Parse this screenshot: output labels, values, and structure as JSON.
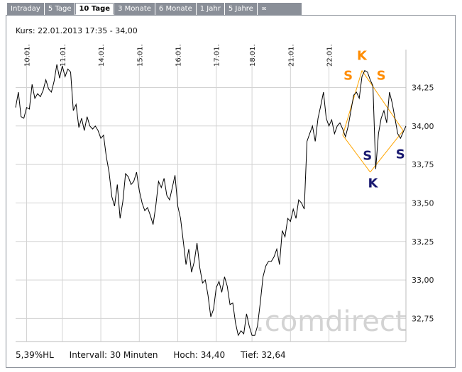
{
  "tabs": [
    "Intraday",
    "5 Tage",
    "10 Tage",
    "3 Monate",
    "6 Monate",
    "1 Jahr",
    "5 Jahre",
    "∞"
  ],
  "active_tab": "10 Tage",
  "kurs_label": "Kurs: 22.01.2013 17:35 - 34,00",
  "footer": {
    "performance": "5,39%HL",
    "interval": "Intervall: 30 Minuten",
    "high": "Hoch:  34,40",
    "low": "Tief:  32,64"
  },
  "watermark": ".comdirect",
  "colors": {
    "line": "#000000",
    "pattern": "#ffa500",
    "label_s_top": "#ff8c00",
    "label_s_bottom": "#191970",
    "grid": "#d0d0d0"
  },
  "chart_data": {
    "type": "line",
    "title": "",
    "xlabel": "",
    "ylabel": "",
    "x_ticks": [
      "10.01.",
      "11.01.",
      "14.01.",
      "15.01.",
      "16.01.",
      "17.01.",
      "18.01.",
      "21.01.",
      "22.01."
    ],
    "y_ticks": [
      "34,25",
      "34,00",
      "33,75",
      "33,50",
      "33,25",
      "33,00",
      "32,75"
    ],
    "ylim": [
      32.6,
      34.45
    ],
    "grid": true,
    "series": [
      {
        "values": [
          34.12,
          34.22,
          34.06,
          34.05,
          34.12,
          34.11,
          34.27,
          34.18,
          34.21,
          34.19,
          34.23,
          34.3,
          34.24,
          34.22,
          34.29,
          34.4,
          34.31,
          34.39,
          34.32,
          34.37,
          34.35,
          34.1,
          34.14,
          33.99,
          34.05,
          33.97,
          34.06,
          34.0,
          33.98,
          34.0,
          33.97,
          33.92,
          33.94,
          33.8,
          33.7,
          33.54,
          33.48,
          33.62,
          33.4,
          33.51,
          33.69,
          33.67,
          33.62,
          33.64,
          33.7,
          33.58,
          33.5,
          33.45,
          33.47,
          33.42,
          33.36,
          33.48,
          33.64,
          33.6,
          33.66,
          33.55,
          33.52,
          33.6,
          33.68,
          33.48,
          33.4,
          33.25,
          33.1,
          33.2,
          33.05,
          33.12,
          33.24,
          33.08,
          32.98,
          33.0,
          32.9,
          32.76,
          32.81,
          32.95,
          32.99,
          32.92,
          33.02,
          32.96,
          32.84,
          32.85,
          32.72,
          32.64,
          32.67,
          32.65,
          32.78,
          32.7,
          32.64,
          32.64,
          32.7,
          32.85,
          33.02,
          33.09,
          33.12,
          33.12,
          33.15,
          33.2,
          33.1,
          33.32,
          33.28,
          33.4,
          33.38,
          33.46,
          33.4,
          33.52,
          33.5,
          33.46,
          33.9,
          33.95,
          34.0,
          33.9,
          34.05,
          34.13,
          34.22,
          34.05,
          34.0,
          34.04,
          33.95,
          34.0,
          34.02,
          33.98,
          33.93,
          34.0,
          34.1,
          34.2,
          34.22,
          34.18,
          34.32,
          34.36,
          34.35,
          34.3,
          34.26,
          33.72,
          33.95,
          34.05,
          34.1,
          34.02,
          34.22,
          34.15,
          34.05,
          33.95,
          33.92,
          33.96,
          34.0
        ]
      }
    ],
    "annotations": [
      {
        "text": "S",
        "role": "shoulder",
        "color": "#ff8c00",
        "at": {
          "index": 121,
          "value": 34.3
        }
      },
      {
        "text": "K",
        "role": "head",
        "color": "#ff8c00",
        "at": {
          "index": 126,
          "value": 34.43
        }
      },
      {
        "text": "S",
        "role": "shoulder",
        "color": "#ff8c00",
        "at": {
          "index": 133,
          "value": 34.3
        }
      },
      {
        "text": "S",
        "role": "shoulder",
        "color": "#191970",
        "at": {
          "index": 128,
          "value": 33.78
        }
      },
      {
        "text": "K",
        "role": "head",
        "color": "#191970",
        "at": {
          "index": 130,
          "value": 33.6
        }
      },
      {
        "text": "S",
        "role": "shoulder",
        "color": "#191970",
        "at": {
          "index": 140,
          "value": 33.79
        }
      }
    ],
    "pattern_lines": [
      [
        {
          "index": 119,
          "value": 33.94
        },
        {
          "index": 126,
          "value": 34.36
        }
      ],
      [
        {
          "index": 126,
          "value": 34.36
        },
        {
          "index": 141,
          "value": 33.97
        }
      ],
      [
        {
          "index": 119,
          "value": 33.94
        },
        {
          "index": 129,
          "value": 33.7
        }
      ],
      [
        {
          "index": 129,
          "value": 33.7
        },
        {
          "index": 141,
          "value": 33.97
        }
      ]
    ]
  }
}
